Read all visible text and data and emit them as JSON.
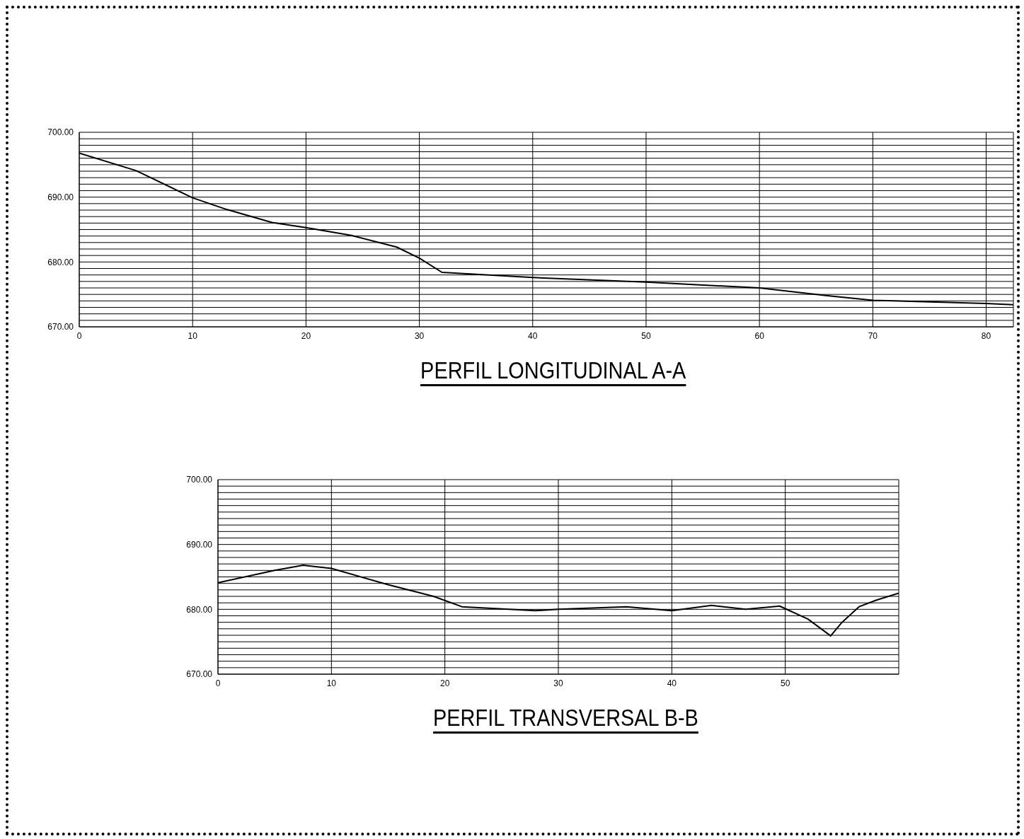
{
  "chart_data": [
    {
      "type": "line",
      "title": "PERFIL LONGITUDINAL A-A",
      "grid": true,
      "x": [
        0,
        5,
        10,
        13,
        17,
        20,
        24,
        28,
        30,
        32,
        40,
        50,
        60,
        66,
        70,
        80,
        82.4
      ],
      "series": [
        {
          "color": "#000000",
          "values": [
            696.8,
            694.1,
            689.9,
            688.1,
            686.1,
            685.3,
            684.1,
            682.3,
            680.6,
            678.4,
            677.6,
            676.9,
            676.0,
            674.8,
            674.1,
            673.6,
            673.4
          ]
        }
      ],
      "xlim": [
        0,
        82.4
      ],
      "xticks": [
        0,
        10,
        20,
        30,
        40,
        50,
        60,
        70,
        80
      ],
      "ylim": [
        670,
        700
      ],
      "yticks": [
        {
          "value": 670,
          "label": "670.00"
        },
        {
          "value": 671,
          "label": null
        },
        {
          "value": 672,
          "label": null
        },
        {
          "value": 673,
          "label": null
        },
        {
          "value": 674,
          "label": null
        },
        {
          "value": 675,
          "label": null
        },
        {
          "value": 676,
          "label": null
        },
        {
          "value": 677,
          "label": null
        },
        {
          "value": 678,
          "label": null
        },
        {
          "value": 679,
          "label": null
        },
        {
          "value": 680,
          "label": "680.00"
        },
        {
          "value": 681,
          "label": null
        },
        {
          "value": 682,
          "label": null
        },
        {
          "value": 683,
          "label": null
        },
        {
          "value": 684,
          "label": null
        },
        {
          "value": 685,
          "label": null
        },
        {
          "value": 686,
          "label": null
        },
        {
          "value": 687,
          "label": null
        },
        {
          "value": 688,
          "label": null
        },
        {
          "value": 689,
          "label": null
        },
        {
          "value": 690,
          "label": "690.00"
        },
        {
          "value": 691,
          "label": null
        },
        {
          "value": 692,
          "label": null
        },
        {
          "value": 693,
          "label": null
        },
        {
          "value": 694,
          "label": null
        },
        {
          "value": 695,
          "label": null
        },
        {
          "value": 696,
          "label": null
        },
        {
          "value": 697,
          "label": null
        },
        {
          "value": 698,
          "label": null
        },
        {
          "value": 699,
          "label": null
        },
        {
          "value": 700,
          "label": "700.00"
        }
      ]
    },
    {
      "type": "line",
      "title": "PERFIL TRANSVERSAL B-B",
      "grid": true,
      "x": [
        0,
        5,
        7.5,
        10,
        15,
        19,
        21.5,
        28,
        30,
        36,
        40,
        43.5,
        46.5,
        49.5,
        52,
        54,
        55,
        56.5,
        58,
        60
      ],
      "series": [
        {
          "color": "#000000",
          "values": [
            684.1,
            686.0,
            686.8,
            686.3,
            683.8,
            682.0,
            680.4,
            679.8,
            680.0,
            680.4,
            679.8,
            680.6,
            680.0,
            680.5,
            678.5,
            675.9,
            678.0,
            680.4,
            681.4,
            682.5
          ]
        }
      ],
      "xlim": [
        0,
        60
      ],
      "xticks": [
        0,
        10,
        20,
        30,
        40,
        50
      ],
      "ylim": [
        670,
        700
      ],
      "yticks": [
        {
          "value": 670,
          "label": "670.00"
        },
        {
          "value": 671,
          "label": null
        },
        {
          "value": 672,
          "label": null
        },
        {
          "value": 673,
          "label": null
        },
        {
          "value": 674,
          "label": null
        },
        {
          "value": 675,
          "label": null
        },
        {
          "value": 676,
          "label": null
        },
        {
          "value": 677,
          "label": null
        },
        {
          "value": 678,
          "label": null
        },
        {
          "value": 679,
          "label": null
        },
        {
          "value": 680,
          "label": "680.00"
        },
        {
          "value": 681,
          "label": null
        },
        {
          "value": 682,
          "label": null
        },
        {
          "value": 683,
          "label": null
        },
        {
          "value": 684,
          "label": null
        },
        {
          "value": 685,
          "label": null
        },
        {
          "value": 686,
          "label": null
        },
        {
          "value": 687,
          "label": null
        },
        {
          "value": 688,
          "label": null
        },
        {
          "value": 689,
          "label": null
        },
        {
          "value": 690,
          "label": "690.00"
        },
        {
          "value": 691,
          "label": null
        },
        {
          "value": 692,
          "label": null
        },
        {
          "value": 693,
          "label": null
        },
        {
          "value": 694,
          "label": null
        },
        {
          "value": 695,
          "label": null
        },
        {
          "value": 696,
          "label": null
        },
        {
          "value": 697,
          "label": null
        },
        {
          "value": 698,
          "label": null
        },
        {
          "value": 699,
          "label": null
        },
        {
          "value": 700,
          "label": "700.00"
        }
      ]
    }
  ]
}
